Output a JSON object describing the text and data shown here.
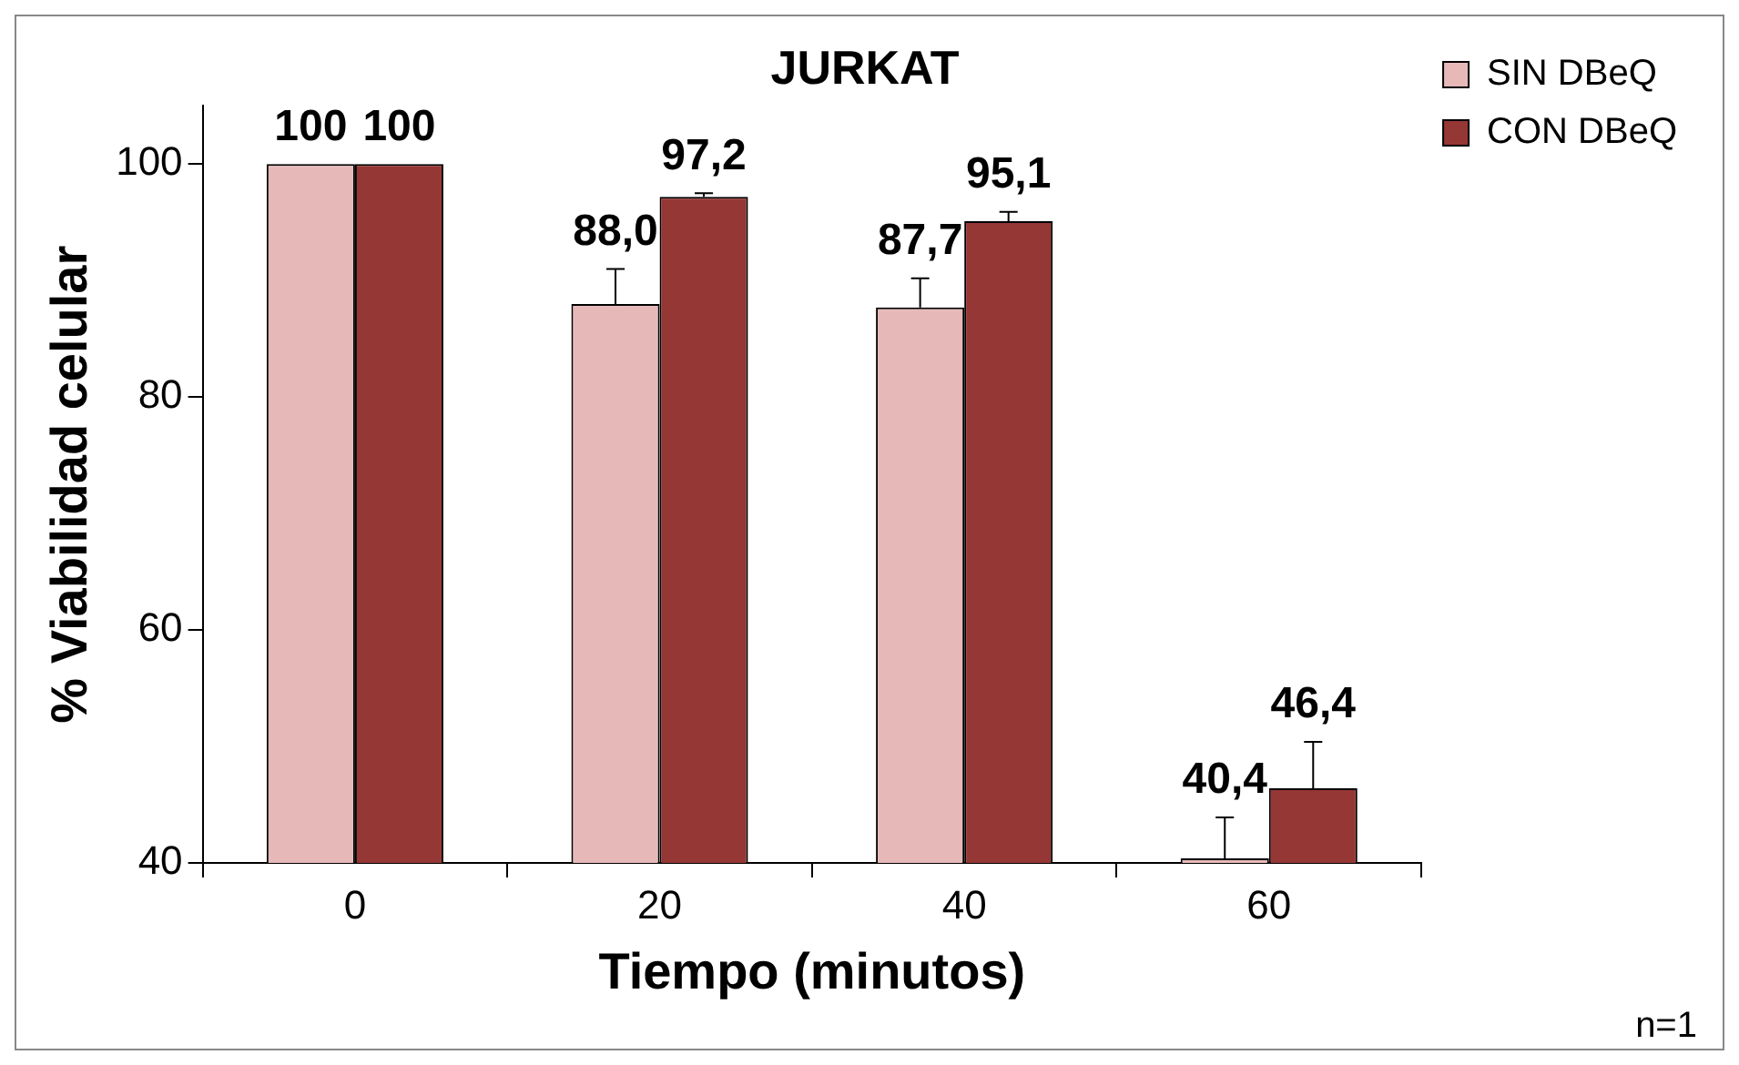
{
  "chart_data": {
    "type": "bar",
    "title": "JURKAT",
    "xlabel": "Tiempo (minutos)",
    "ylabel": "% Viabilidad celular",
    "categories": [
      "0",
      "20",
      "40",
      "60"
    ],
    "series": [
      {
        "name": "SIN DBeQ",
        "color": "#e6b9b8",
        "values": [
          100,
          88.0,
          87.7,
          40.4
        ],
        "errors": [
          null,
          [
            88.0,
            91.0
          ],
          [
            87.7,
            90.2
          ],
          [
            40.4,
            43.9
          ]
        ],
        "value_labels": [
          "100",
          "88,0",
          "87,7",
          "40,4"
        ]
      },
      {
        "name": "CON DBeQ",
        "color": "#953735",
        "values": [
          100,
          97.2,
          95.1,
          46.4
        ],
        "errors": [
          null,
          [
            97.2,
            97.5
          ],
          [
            95.1,
            95.9
          ],
          [
            46.4,
            50.4
          ]
        ],
        "value_labels": [
          "100",
          "97,2",
          "95,1",
          "46,4"
        ]
      }
    ],
    "ylim": [
      40,
      105
    ],
    "yticks": [
      40,
      60,
      80,
      100
    ],
    "grid": false,
    "legend": "top right",
    "annotations": [
      "n=1"
    ]
  }
}
